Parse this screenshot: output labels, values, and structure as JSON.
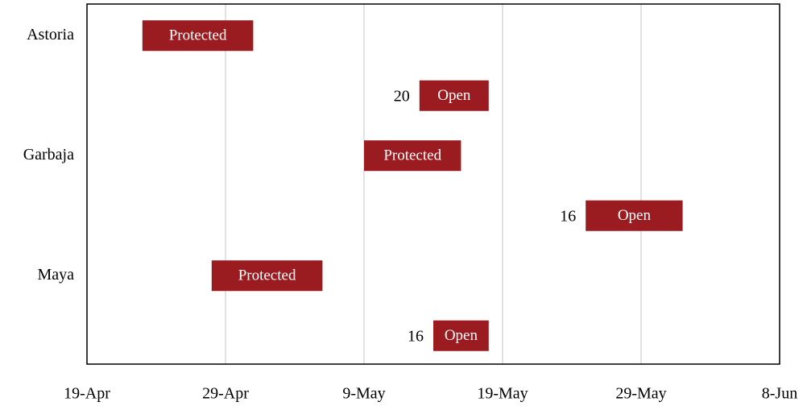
{
  "chart_data": {
    "type": "gantt",
    "categories": [
      "Astoria",
      null,
      "Garbaja",
      null,
      "Maya",
      null
    ],
    "start": [
      "23-Apr",
      "13-May",
      "9-May",
      "25-May",
      "28-Apr",
      "14-May"
    ],
    "end": [
      "1-May",
      "18-May",
      "16-May",
      "1-Jun",
      "6-May",
      "18-May"
    ],
    "bar_labels": [
      "Protected",
      "Open",
      "Protected",
      "Open",
      "Protected",
      "Open"
    ],
    "values": [
      null,
      20,
      null,
      16,
      null,
      16
    ],
    "color": "#9b1c20",
    "xlim": [
      "19-Apr",
      "8-Jun"
    ],
    "xticks": [
      "19-Apr",
      "29-Apr",
      "9-May",
      "19-May",
      "29-May",
      "8-Jun"
    ],
    "grid": true
  }
}
